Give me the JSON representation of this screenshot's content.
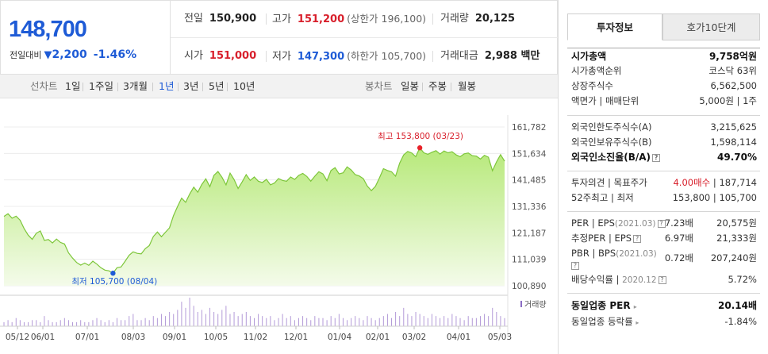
{
  "price": {
    "current": "148,700",
    "change_label": "전일대비",
    "change_arrow": "▼",
    "change_amount": "2,200",
    "change_pct": "-1.46%"
  },
  "quote": {
    "prev_label": "전일",
    "prev_value": "150,900",
    "high_label": "고가",
    "high_value": "151,200",
    "upper_label": "(상한가 196,100)",
    "volume_label": "거래량",
    "volume_value": "20,125",
    "open_label": "시가",
    "open_value": "151,000",
    "low_label": "저가",
    "low_value": "147,300",
    "lower_label": "(하한가 105,700)",
    "amount_label": "거래대금",
    "amount_value": "2,988 백만"
  },
  "periods": {
    "line_label": "선차트",
    "line_options": [
      "1일",
      "1주일",
      "3개월",
      "1년",
      "3년",
      "5년",
      "10년"
    ],
    "selected": "1년",
    "candle_label": "봉차트",
    "candle_options": [
      "일봉",
      "주봉",
      "월봉"
    ]
  },
  "chart_data": {
    "type": "area",
    "y_ticks": [
      "161,782",
      "151,634",
      "141,485",
      "131,336",
      "121,187",
      "111,039",
      "100,890"
    ],
    "ylim": [
      100890,
      161782
    ],
    "x_ticks": [
      "05/12",
      "06/01",
      "07/01",
      "08/03",
      "09/01",
      "10/05",
      "11/02",
      "12/01",
      "01/04",
      "02/01",
      "03/02",
      "04/01",
      "05/03"
    ],
    "high_annotation": "최고 153,800 (03/23)",
    "low_annotation": "최저 105,700 (08/04)",
    "volume_label": "거래량",
    "series": [
      {
        "values": [
          127500,
          128500,
          126800,
          127600,
          126000,
          122800,
          120300,
          118700,
          121000,
          121900,
          118300,
          118600,
          117300,
          118800,
          117500,
          116900,
          113500,
          111500,
          109800,
          108800,
          109600,
          108700,
          110300,
          109200,
          107800,
          106900,
          106600,
          105700,
          107800,
          108100,
          110300,
          112600,
          113900,
          113300,
          113100,
          115100,
          116300,
          119800,
          121500,
          119700,
          121400,
          123100,
          127800,
          131300,
          134500,
          132900,
          136100,
          138700,
          136800,
          139700,
          141900,
          138900,
          143200,
          144700,
          142500,
          139600,
          144100,
          141600,
          138200,
          140700,
          143500,
          141300,
          142600,
          141000,
          140500,
          141700,
          139600,
          140300,
          142000,
          141300,
          141000,
          142600,
          141700,
          143200,
          144000,
          142800,
          141000,
          142900,
          144600,
          143800,
          141200,
          145100,
          146200,
          143800,
          144200,
          146500,
          145300,
          143500,
          143000,
          142000,
          139100,
          137400,
          139000,
          142300,
          145800,
          145100,
          144600,
          142900,
          147900,
          151100,
          152400,
          151800,
          150400,
          153800,
          151900,
          151300,
          152100,
          152700,
          151400,
          152600,
          151900,
          152300,
          151100,
          150400,
          151500,
          151800,
          150800,
          150600,
          149500,
          150900,
          150200,
          145000,
          148400,
          151200,
          148700
        ]
      }
    ],
    "volume": [
      2,
      3,
      2,
      4,
      3,
      2,
      2,
      3,
      3,
      2,
      5,
      3,
      2,
      2,
      3,
      4,
      3,
      2,
      2,
      3,
      2,
      2,
      3,
      4,
      3,
      2,
      3,
      2,
      4,
      3,
      3,
      5,
      6,
      3,
      3,
      4,
      3,
      5,
      4,
      6,
      5,
      7,
      6,
      8,
      12,
      9,
      14,
      10,
      7,
      8,
      6,
      9,
      7,
      6,
      8,
      10,
      6,
      7,
      5,
      6,
      7,
      5,
      4,
      6,
      5,
      4,
      5,
      3,
      4,
      6,
      4,
      5,
      3,
      4,
      5,
      4,
      3,
      5,
      4,
      4,
      3,
      5,
      4,
      6,
      4,
      3,
      4,
      5,
      4,
      3,
      5,
      4,
      3,
      4,
      5,
      6,
      4,
      7,
      5,
      9,
      6,
      5,
      7,
      6,
      5,
      4,
      6,
      5,
      4,
      5,
      4,
      6,
      5,
      4,
      3,
      5,
      4,
      4,
      5,
      6,
      5,
      9,
      7,
      5,
      4
    ]
  },
  "invest": {
    "tabs": [
      "투자정보",
      "호가10단계"
    ],
    "market_cap_label": "시가총액",
    "market_cap_value": "9,758억원",
    "cap_rank_label": "시가총액순위",
    "cap_rank_value": "코스닥 63위",
    "shares_label": "상장주식수",
    "shares_value": "6,562,500",
    "par_label": "액면가",
    "par_sep": "|",
    "unit_label": "매매단위",
    "par_value": "5,000원",
    "unit_value": "1주",
    "foreign_limit_label": "외국인한도주식수(A)",
    "foreign_limit_value": "3,215,625",
    "foreign_hold_label": "외국인보유주식수(B)",
    "foreign_hold_value": "1,598,114",
    "foreign_ratio_label": "외국인소진율(B/A)",
    "foreign_ratio_value": "49.70%",
    "opinion_label": "투자의견",
    "target_label": "목표주가",
    "opinion_value": "4.00매수",
    "target_value": "187,714",
    "week52_label": "52주최고",
    "week52_low_label": "최저",
    "week52_high": "153,800",
    "week52_low": "105,700",
    "per_label": "PER",
    "eps_label": "EPS",
    "eps_year": "(2021.03)",
    "per_value": "7.23배",
    "eps_value": "20,575원",
    "est_per_label": "추정PER",
    "est_eps_label": "EPS",
    "est_per_value": "6.97배",
    "est_eps_value": "21,333원",
    "pbr_label": "PBR",
    "bps_label": "BPS",
    "bps_year": "(2021.03)",
    "pbr_value": "0.72배",
    "bps_value": "207,240원",
    "div_label": "배당수익률",
    "div_year": "2020.12",
    "div_value": "5.72%",
    "industry_per_label": "동일업종 PER",
    "industry_per_value": "20.14배",
    "industry_rate_label": "동일업종 등락률",
    "industry_rate_value": "-1.84%"
  }
}
